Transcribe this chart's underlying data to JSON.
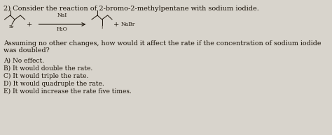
{
  "background_color": "#d8d4cc",
  "title_line": "2) Consider the reaction of 2-bromo-2-methylpentane with sodium iodide.",
  "question_line1": "Assuming no other changes, how would it affect the rate if the concentration of sodium iodide",
  "question_line2": "was doubled?",
  "options": [
    "A) No effect.",
    "B) It would double the rate.",
    "C) It would triple the rate.",
    "D) It would quadruple the rate.",
    "E) It would increase the rate five times."
  ],
  "reaction_above": "NaI",
  "reaction_below": "H₂O",
  "reaction_right": "NaBr",
  "text_color": "#1a1208",
  "font_size_title": 7.0,
  "font_size_body": 6.8,
  "font_size_options": 6.5,
  "font_size_reaction": 5.5
}
